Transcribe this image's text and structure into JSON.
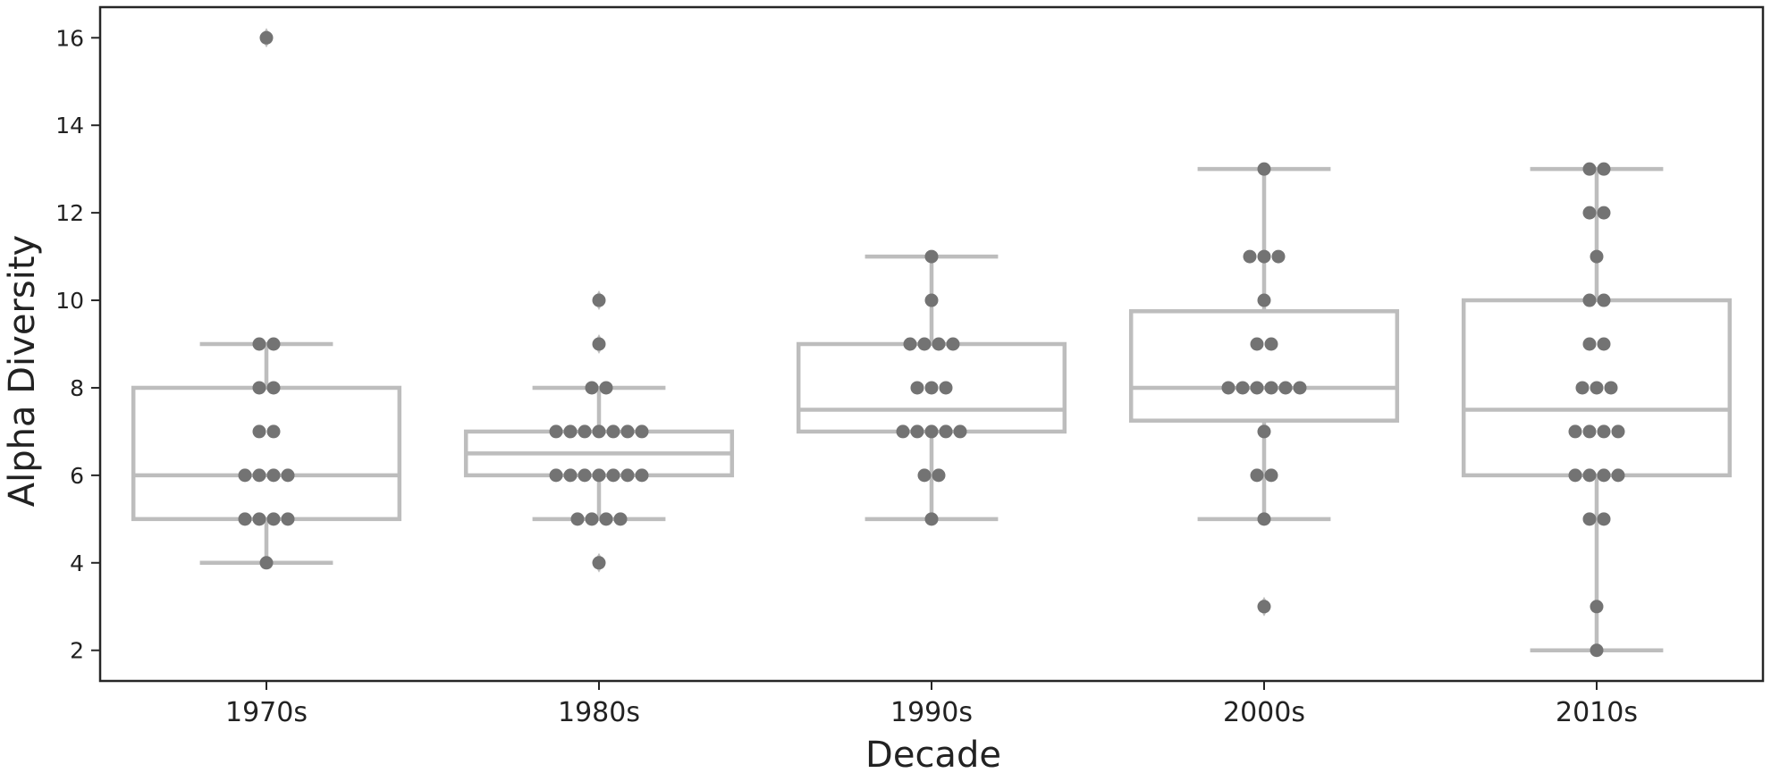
{
  "chart_data": {
    "type": "box-swarm",
    "xlabel": "Decade",
    "ylabel": "Alpha Diversity",
    "categories": [
      "1970s",
      "1980s",
      "1990s",
      "2000s",
      "2010s"
    ],
    "ylim": [
      1.3,
      16.7
    ],
    "yticks": [
      2,
      4,
      6,
      8,
      10,
      12,
      14,
      16
    ],
    "grid": false,
    "colors": {
      "box": "#bdbdbd",
      "point": "#737373",
      "axis": "#262626",
      "text": "#222222"
    },
    "boxes": [
      {
        "category": "1970s",
        "whisker_low": 4,
        "q1": 5,
        "median": 6,
        "q3": 8,
        "whisker_high": 9,
        "outliers": [
          16
        ]
      },
      {
        "category": "1980s",
        "whisker_low": 5,
        "q1": 6,
        "median": 6.5,
        "q3": 7,
        "whisker_high": 8,
        "outliers": [
          4,
          9,
          10
        ]
      },
      {
        "category": "1990s",
        "whisker_low": 5,
        "q1": 7,
        "median": 7.5,
        "q3": 9,
        "whisker_high": 11,
        "outliers": []
      },
      {
        "category": "2000s",
        "whisker_low": 5,
        "q1": 7.25,
        "median": 8,
        "q3": 9.75,
        "whisker_high": 13,
        "outliers": [
          3
        ]
      },
      {
        "category": "2010s",
        "whisker_low": 2,
        "q1": 6,
        "median": 7.5,
        "q3": 10,
        "whisker_high": 13,
        "outliers": []
      }
    ],
    "points": [
      {
        "category": "1970s",
        "values": [
          4,
          5,
          5,
          5,
          5,
          6,
          6,
          6,
          6,
          7,
          7,
          8,
          8,
          9,
          9,
          16
        ]
      },
      {
        "category": "1980s",
        "values": [
          4,
          5,
          5,
          5,
          5,
          6,
          6,
          6,
          6,
          6,
          6,
          6,
          7,
          7,
          7,
          7,
          7,
          7,
          7,
          8,
          8,
          9,
          10
        ]
      },
      {
        "category": "1990s",
        "values": [
          5,
          6,
          6,
          7,
          7,
          7,
          7,
          7,
          8,
          8,
          8,
          9,
          9,
          9,
          9,
          10,
          11
        ]
      },
      {
        "category": "2000s",
        "values": [
          3,
          5,
          6,
          6,
          7,
          8,
          8,
          8,
          8,
          8,
          8,
          9,
          9,
          10,
          11,
          11,
          11,
          13
        ]
      },
      {
        "category": "2010s",
        "values": [
          2,
          3,
          5,
          5,
          6,
          6,
          6,
          6,
          7,
          7,
          7,
          7,
          8,
          8,
          8,
          9,
          9,
          10,
          10,
          11,
          12,
          12,
          13,
          13
        ]
      }
    ]
  }
}
